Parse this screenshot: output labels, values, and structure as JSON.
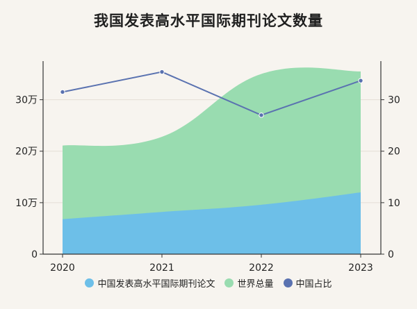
{
  "chart_data": {
    "type": "area",
    "title": "我国发表高水平国际期刊论文数量",
    "categories": [
      "2020",
      "2021",
      "2022",
      "2023"
    ],
    "left_axis": {
      "range": [
        0,
        375000
      ],
      "ticks": [
        {
          "value": 0,
          "label": "0"
        },
        {
          "value": 100000,
          "label": "10万"
        },
        {
          "value": 200000,
          "label": "20万"
        },
        {
          "value": 300000,
          "label": "30万"
        }
      ]
    },
    "right_axis": {
      "range": [
        0,
        37.5
      ],
      "ticks": [
        {
          "value": 0,
          "label": "0"
        },
        {
          "value": 10,
          "label": "10"
        },
        {
          "value": 20,
          "label": "20"
        },
        {
          "value": 30,
          "label": "30"
        }
      ]
    },
    "series": [
      {
        "name": "中国发表高水平国际期刊论文",
        "type": "area",
        "axis": "left",
        "color": "#6dbfe8",
        "values": [
          68000,
          82000,
          96000,
          120000
        ]
      },
      {
        "name": "世界总量",
        "type": "area",
        "axis": "left",
        "color": "#99dcb0",
        "values": [
          211000,
          228000,
          350000,
          355000
        ]
      },
      {
        "name": "中国占比",
        "type": "line",
        "axis": "right",
        "color": "#5a72b0",
        "values": [
          31.5,
          35.4,
          27.0,
          33.7
        ]
      }
    ],
    "legend_position": "bottom",
    "grid": true
  }
}
